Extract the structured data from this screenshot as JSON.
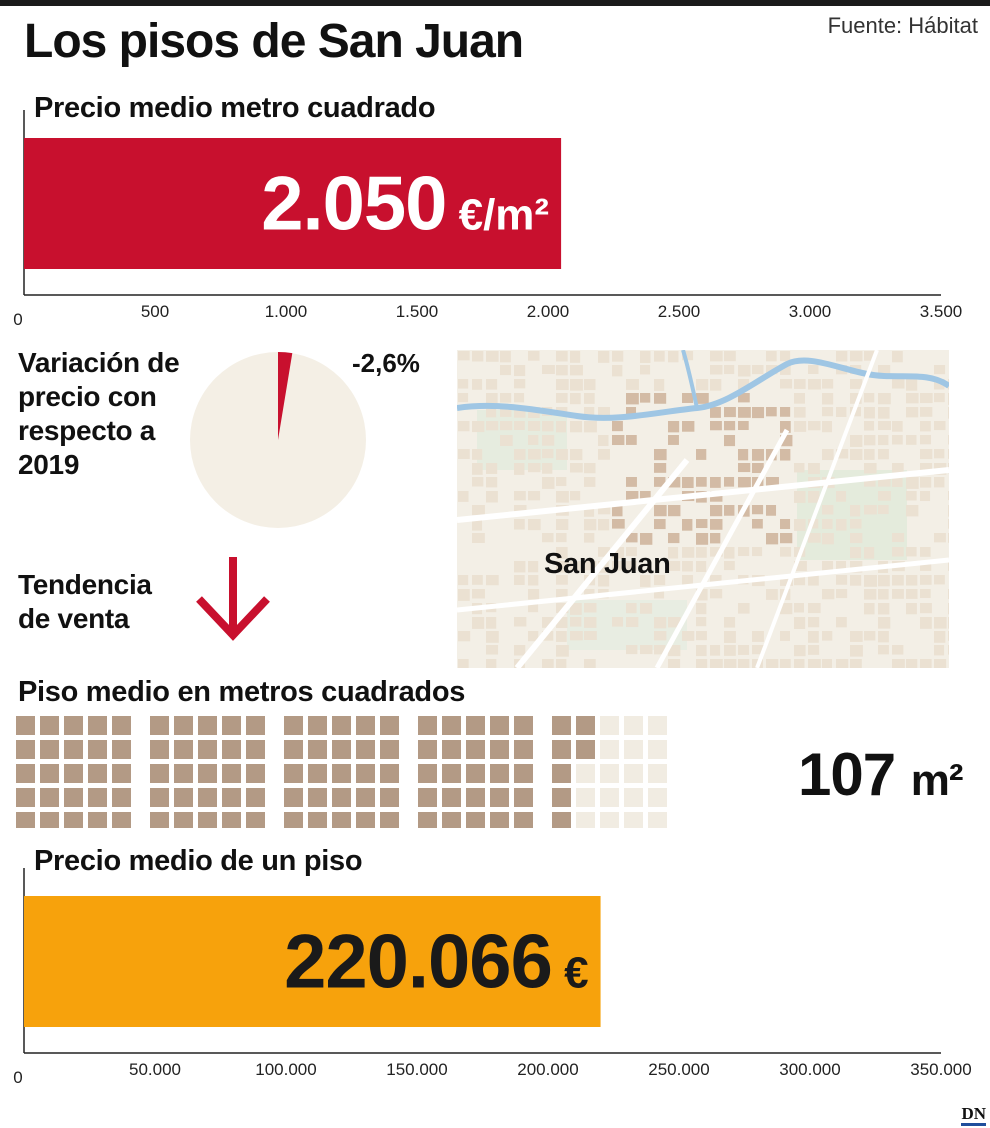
{
  "title": "Los pisos de San Juan",
  "source": "Fuente: Hábitat",
  "colors": {
    "red": "#c8102e",
    "orange": "#f7a20c",
    "brown": "#b39a85",
    "cream": "#f4efe5",
    "grid_empty": "#f1ece2"
  },
  "price_per_sqm": {
    "label": "Precio medio metro cuadrado",
    "value_text": "2.050",
    "unit_text": "€/m²"
  },
  "variation": {
    "label_lines": [
      "Variación de",
      "precio con",
      "respecto a",
      "2019"
    ],
    "value_text": "-2,6%"
  },
  "trend": {
    "label_lines": [
      "Tendencia",
      "de venta"
    ],
    "icon": "arrow-down-icon",
    "direction": "down"
  },
  "map": {
    "label": "San Juan"
  },
  "area": {
    "label": "Piso medio en metros cuadrados",
    "value_text": "107",
    "unit_text": "m²"
  },
  "flat_price": {
    "label": "Precio medio de un piso",
    "value_text": "220.066",
    "unit_text": "€"
  },
  "logo": "DN",
  "chart_data": [
    {
      "type": "bar",
      "orientation": "horizontal",
      "title": "Precio medio metro cuadrado",
      "values": [
        2050
      ],
      "unit": "€/m²",
      "xlim": [
        0,
        3500
      ],
      "ticks": [
        0,
        500,
        1000,
        1500,
        2000,
        2500,
        3000,
        3500
      ],
      "tick_labels": [
        "0",
        "500",
        "1.000",
        "1.500",
        "2.000",
        "2.500",
        "3.000",
        "3.500"
      ],
      "value_label": "2.050 €/m²",
      "grid": false
    },
    {
      "type": "pie",
      "title": "Variación de precio con respecto a 2019",
      "values": [
        2.6
      ],
      "full_scale": 100,
      "value_label": "-2,6%"
    },
    {
      "type": "waffle",
      "title": "Piso medio en metros cuadrados",
      "value": 107,
      "total": 125,
      "unit": "m²",
      "value_label": "107 m²"
    },
    {
      "type": "bar",
      "orientation": "horizontal",
      "title": "Precio medio de un piso",
      "values": [
        220066
      ],
      "unit": "€",
      "xlim": [
        0,
        350000
      ],
      "ticks": [
        0,
        50000,
        100000,
        150000,
        200000,
        250000,
        300000,
        350000
      ],
      "tick_labels": [
        "0",
        "50.000",
        "100.000",
        "150.000",
        "200.000",
        "250.000",
        "300.000",
        "350.000"
      ],
      "value_label": "220.066 €",
      "grid": false
    }
  ]
}
